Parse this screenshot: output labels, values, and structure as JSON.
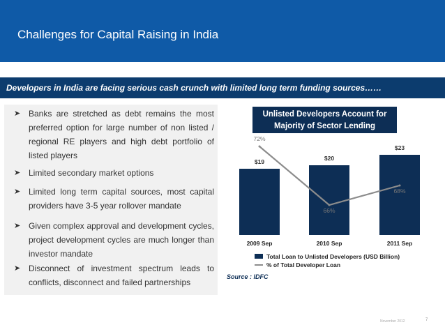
{
  "header": {
    "title": "Challenges for Capital Raising in India"
  },
  "banner": {
    "text": "Developers in India are facing serious cash crunch with limited long term funding sources……"
  },
  "bullets": [
    "Banks are stretched as debt remains the most preferred option for large number of non listed / regional RE players and high debt portfolio of listed players",
    "Limited secondary market options",
    "Limited long term capital sources, most capital providers  have 3-5 year rollover mandate",
    "Given complex approval and development cycles, project development cycles are much longer than investor mandate",
    "Disconnect of investment spectrum leads to conflicts, disconnect and failed partnerships"
  ],
  "chart_title": "Unlisted Developers Account for Majority of Sector Lending",
  "chart_data": {
    "type": "bar",
    "categories": [
      "2009 Sep",
      "2010 Sep",
      "2011 Sep"
    ],
    "series": [
      {
        "name": "Total Loan to Unlisted Developers (USD Billion)",
        "type": "bar",
        "values": [
          19,
          20,
          23
        ],
        "labels": [
          "$19",
          "$20",
          "$23"
        ],
        "color": "#0d2e55"
      },
      {
        "name": "% of Total Developer Loan",
        "type": "line",
        "values": [
          72,
          66,
          68
        ],
        "labels": [
          "72%",
          "66%",
          "68%"
        ],
        "color": "#8c8c8c"
      }
    ],
    "grid": false,
    "legend": "bottom"
  },
  "source": "Source : IDFC",
  "footer": {
    "date": "November 2012",
    "page": "7"
  }
}
